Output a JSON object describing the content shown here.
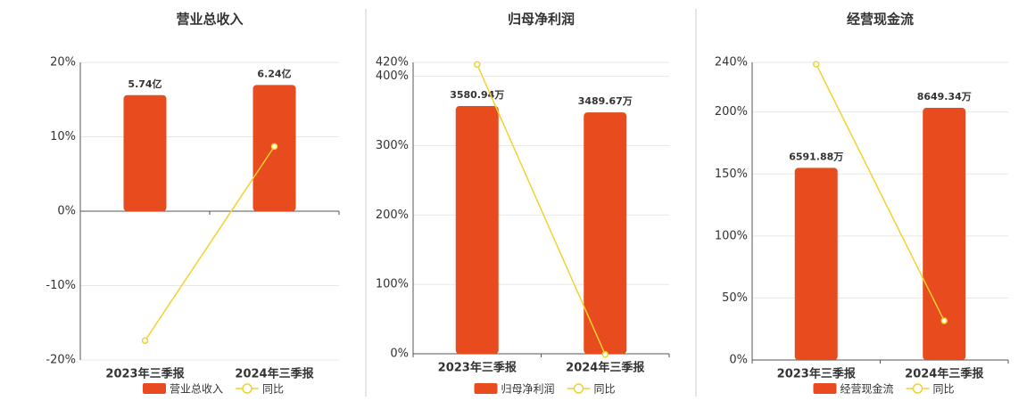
{
  "chart_data": [
    {
      "type": "combo",
      "title": "营业总收入",
      "categories": [
        "2023年三季报",
        "2024年三季报"
      ],
      "series": [
        {
          "name": "营业总收入",
          "type": "bar",
          "axis": "y2",
          "color": "#e84c1e",
          "values": [
            5.74,
            6.24
          ],
          "value_labels": [
            "5.74亿",
            "6.24亿"
          ]
        },
        {
          "name": "同比",
          "type": "line",
          "color": "#f2d22e",
          "values": [
            -17.4,
            8.7
          ]
        }
      ],
      "ylim": [
        -20,
        20
      ],
      "yticks": [
        {
          "value": -20,
          "label": "-20%"
        },
        {
          "value": -10,
          "label": "-10%"
        },
        {
          "value": 0,
          "label": "0%"
        },
        {
          "value": 10,
          "label": "10%"
        },
        {
          "value": 20,
          "label": "20%"
        }
      ],
      "y2lim": [
        -7.36,
        7.36
      ],
      "grid": true
    },
    {
      "type": "combo",
      "title": "归母净利润",
      "categories": [
        "2023年三季报",
        "2024年三季报"
      ],
      "series": [
        {
          "name": "归母净利润",
          "type": "bar",
          "axis": "y2",
          "color": "#e84c1e",
          "values": [
            3580.94,
            3489.67
          ],
          "value_labels": [
            "3580.94万",
            "3489.67万"
          ]
        },
        {
          "name": "同比",
          "type": "line",
          "color": "#f2d22e",
          "values": [
            417,
            -1
          ]
        }
      ],
      "ylim": [
        0,
        420
      ],
      "yticks": [
        {
          "value": 0,
          "label": "0%"
        },
        {
          "value": 100,
          "label": "100%"
        },
        {
          "value": 200,
          "label": "200%"
        },
        {
          "value": 300,
          "label": "300%"
        },
        {
          "value": 400,
          "label": "400%"
        },
        {
          "value": 420,
          "label": "420%"
        }
      ],
      "y2lim": [
        0,
        4213
      ],
      "grid": true
    },
    {
      "type": "combo",
      "title": "经营现金流",
      "categories": [
        "2023年三季报",
        "2024年三季报"
      ],
      "series": [
        {
          "name": "经营现金流",
          "type": "bar",
          "axis": "y2",
          "color": "#e84c1e",
          "values": [
            6591.88,
            8649.34
          ],
          "value_labels": [
            "6591.88万",
            "8649.34万"
          ]
        },
        {
          "name": "同比",
          "type": "line",
          "color": "#f2d22e",
          "values": [
            238.5,
            31.6
          ]
        }
      ],
      "ylim": [
        0,
        240
      ],
      "yticks": [
        {
          "value": 0,
          "label": "0%"
        },
        {
          "value": 50,
          "label": "50%"
        },
        {
          "value": 100,
          "label": "100%"
        },
        {
          "value": 150,
          "label": "150%"
        },
        {
          "value": 200,
          "label": "200%"
        },
        {
          "value": 240,
          "label": "240%"
        }
      ],
      "y2lim": [
        0,
        10210
      ],
      "grid": true
    }
  ]
}
